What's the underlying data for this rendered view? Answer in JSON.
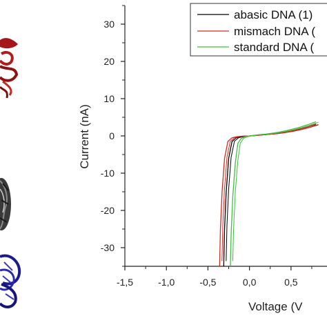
{
  "chart_data": {
    "type": "line",
    "xlabel": "Voltage (V",
    "ylabel": "Current (nA)",
    "xlim": [
      -1.5,
      0.9
    ],
    "ylim": [
      -35,
      35
    ],
    "x_ticks": [
      "-1,5",
      "-1,0",
      "-0,5",
      "0,0",
      "0,5"
    ],
    "x_tick_values": [
      -1.5,
      -1.0,
      -0.5,
      0.0,
      0.5
    ],
    "y_ticks": [
      "30",
      "20",
      "10",
      "0",
      "-10",
      "-20",
      "-30"
    ],
    "y_tick_values": [
      30,
      20,
      10,
      0,
      -10,
      -20,
      -30
    ],
    "grid": false,
    "legend_position": "top-right",
    "series": [
      {
        "name": "abasic DNA (1)",
        "color": "#000000",
        "x": [
          -0.31,
          -0.3,
          -0.28,
          -0.25,
          -0.21,
          -0.16,
          -0.1,
          -0.05,
          0.0,
          0.1,
          0.2,
          0.3,
          0.4,
          0.5,
          0.6,
          0.7,
          0.8
        ],
        "y": [
          -35,
          -25,
          -15,
          -6,
          -1.5,
          -0.5,
          -0.2,
          -0.05,
          0.0,
          0.2,
          0.4,
          0.6,
          0.9,
          1.3,
          1.8,
          2.4,
          3.1
        ]
      },
      {
        "name": "mismach DNA (",
        "color": "#d42a20",
        "x": [
          -0.36,
          -0.35,
          -0.33,
          -0.3,
          -0.26,
          -0.21,
          -0.15,
          -0.08,
          0.0,
          0.1,
          0.2,
          0.3,
          0.4,
          0.5,
          0.6,
          0.7,
          0.8
        ],
        "y": [
          -35,
          -25,
          -15,
          -6,
          -1.5,
          -0.5,
          -0.2,
          -0.05,
          0.0,
          0.2,
          0.4,
          0.6,
          0.9,
          1.3,
          1.8,
          2.4,
          3.2
        ]
      },
      {
        "name": "standard DNA (",
        "color": "#3fbf3f",
        "x": [
          -0.23,
          -0.22,
          -0.2,
          -0.17,
          -0.14,
          -0.1,
          -0.06,
          -0.03,
          0.0,
          0.1,
          0.2,
          0.3,
          0.4,
          0.5,
          0.6,
          0.7,
          0.8
        ],
        "y": [
          -35,
          -26,
          -16,
          -7,
          -2,
          -0.7,
          -0.3,
          -0.1,
          0.0,
          0.3,
          0.5,
          0.8,
          1.2,
          1.7,
          2.3,
          3.0,
          3.8
        ]
      }
    ]
  },
  "decor": {
    "left_panel": [
      "dna-ribbon-red-icon",
      "dna-helix-gray-icon",
      "dna-ribbon-blue-icon"
    ]
  }
}
